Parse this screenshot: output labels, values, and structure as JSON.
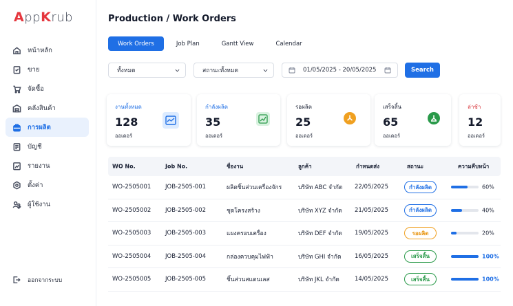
{
  "brand": {
    "mark": "A",
    "name": "pp",
    "mark2": "K",
    "name2": "rub",
    "mark_color": "#e5363d"
  },
  "sidebar": {
    "items": [
      {
        "label": "หน้าหลัก",
        "icon": "home-icon",
        "active": false
      },
      {
        "label": "ขาย",
        "icon": "sales-icon",
        "active": false
      },
      {
        "label": "จัดซื้อ",
        "icon": "cart-icon",
        "active": false
      },
      {
        "label": "คลังสินค้า",
        "icon": "warehouse-icon",
        "active": false
      },
      {
        "label": "การผลิต",
        "icon": "factory-icon",
        "active": true
      },
      {
        "label": "บัญชี",
        "icon": "ledger-icon",
        "active": false
      },
      {
        "label": "รายงาน",
        "icon": "report-icon",
        "active": false
      },
      {
        "label": "ตั้งค่า",
        "icon": "settings-icon",
        "active": false
      },
      {
        "label": "ผู้ใช้งาน",
        "icon": "users-icon",
        "active": false
      }
    ],
    "logout": {
      "label": "ออกจากระบบ",
      "icon": "logout-icon"
    }
  },
  "header": {
    "title": "Production / Work Orders"
  },
  "tabs": [
    {
      "label": "Work Orders",
      "active": true
    },
    {
      "label": "Job Plan",
      "active": false
    },
    {
      "label": "Gantt View",
      "active": false
    },
    {
      "label": "Calendar",
      "active": false
    }
  ],
  "filters": {
    "type_select": "ทั้งหมด",
    "status_select": "สถานะทั้งหมด",
    "date_range": "01/05/2025 - 20/05/2025",
    "search_label": "Search"
  },
  "stats": [
    {
      "title": "งานทั้งหมด",
      "value": "128",
      "unit": "ออเดอร์",
      "title_color": "#1f6fe5",
      "icon": "chart-icon"
    },
    {
      "title": "กำลังผลิต",
      "value": "35",
      "unit": "ออเดอร์",
      "title_color": "#1f6fe5",
      "icon": "trend-icon"
    },
    {
      "title": "รอผลิต",
      "value": "25",
      "unit": "ออเดอร์",
      "title_color": "#1b2235",
      "icon": "pending-icon"
    },
    {
      "title": "เสร็จสิ้น",
      "value": "65",
      "unit": "ออเดอร์",
      "title_color": "#1b2235",
      "icon": "done-icon"
    },
    {
      "title": "ล่าช้า",
      "value": "12",
      "unit": "ออเดอร์",
      "title_color": "#d8343a",
      "icon": ""
    }
  ],
  "table": {
    "headers": [
      "WO No.",
      "Job No.",
      "ชื่องาน",
      "ลูกค้า",
      "กำหนดส่ง",
      "สถานะ",
      "ความคืบหน้า"
    ],
    "rows": [
      {
        "wo": "WO-2505001",
        "job": "JOB-2505-001",
        "name": "ผลิตชิ้นส่วนเครื่องจักร",
        "customer": "บริษัท ABC จำกัด",
        "due": "22/05/2025",
        "status": "กำลังผลิต",
        "status_kind": "progress",
        "progress_pct": 60,
        "progress_label": "60%"
      },
      {
        "wo": "WO-2505002",
        "job": "JOB-2505-002",
        "name": "ชุดโครงสร้าง",
        "customer": "บริษัท XYZ จำกัด",
        "due": "21/05/2025",
        "status": "กำลังผลิต",
        "status_kind": "progress",
        "progress_pct": 40,
        "progress_label": "40%"
      },
      {
        "wo": "WO-2505003",
        "job": "JOB-2505-003",
        "name": "แผงครอบเครื่อง",
        "customer": "บริษัท DEF จำกัด",
        "due": "19/05/2025",
        "status": "รอผลิต",
        "status_kind": "pending",
        "progress_pct": 20,
        "progress_label": "20%"
      },
      {
        "wo": "WO-2505004",
        "job": "JOB-2505-004",
        "name": "กล่องควบคุมไฟฟ้า",
        "customer": "บริษัท GHI จำกัด",
        "due": "16/05/2025",
        "status": "เสร็จสิ้น",
        "status_kind": "done",
        "progress_pct": 100,
        "progress_label": "100%"
      },
      {
        "wo": "WO-2505005",
        "job": "JOB-2505-005",
        "name": "ชิ้นส่วนสแตนเลส",
        "customer": "บริษัท JKL จำกัด",
        "due": "14/05/2025",
        "status": "เสร็จสิ้น",
        "status_kind": "done",
        "progress_pct": 100,
        "progress_label": "100%"
      }
    ]
  },
  "colors": {
    "accent": "#1f6fe5",
    "pending": "#f0a020",
    "done": "#2a9a4a",
    "late": "#d8343a"
  }
}
